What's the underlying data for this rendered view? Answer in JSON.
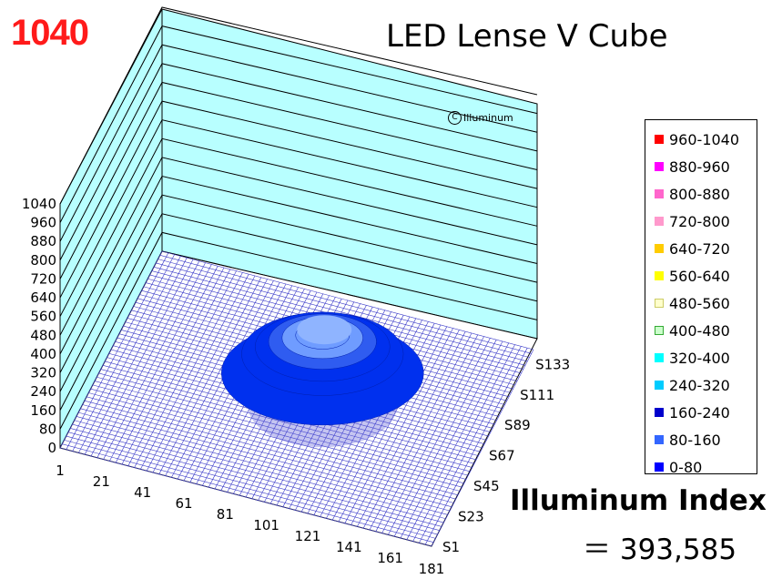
{
  "peak_label": "1040",
  "copyright": {
    "symbol": "C",
    "text": "Illuminum"
  },
  "index": {
    "label": "Illuminum Index",
    "value": "＝ 393,585"
  },
  "chart_data": {
    "type": "surface3d",
    "title": "LED Lense V Cube",
    "xlabel": "",
    "ylabel": "",
    "zlabel": "",
    "z_ticks": [
      "0",
      "80",
      "160",
      "240",
      "320",
      "400",
      "480",
      "560",
      "640",
      "720",
      "800",
      "880",
      "960",
      "1040"
    ],
    "zlim": [
      0,
      1040
    ],
    "x_ticks": [
      "1",
      "21",
      "41",
      "61",
      "81",
      "101",
      "121",
      "141",
      "161",
      "181"
    ],
    "y_ticks": [
      "S1",
      "S23",
      "S45",
      "S67",
      "S89",
      "S111",
      "S133"
    ],
    "legend": [
      {
        "label": "960-1040",
        "color": "#ff0000"
      },
      {
        "label": "880-960",
        "color": "#ff00ff"
      },
      {
        "label": "800-880",
        "color": "#ff66cc"
      },
      {
        "label": "720-800",
        "color": "#ff99cc"
      },
      {
        "label": "640-720",
        "color": "#ffcc00"
      },
      {
        "label": "560-640",
        "color": "#ffff00"
      },
      {
        "label": "480-560",
        "color": "#ffffcc"
      },
      {
        "label": "400-480",
        "color": "#ccffcc"
      },
      {
        "label": "320-400",
        "color": "#00ffff"
      },
      {
        "label": "240-320",
        "color": "#00ccff"
      },
      {
        "label": "160-240",
        "color": "#0000cc"
      },
      {
        "label": "80-160",
        "color": "#3366ff"
      },
      {
        "label": "0-80",
        "color": "#0000ff"
      }
    ],
    "surface": {
      "peak_x": 101,
      "peak_y": "S89",
      "peak_value": 260,
      "base_value": 0
    },
    "grid": true,
    "legend_position": "right"
  },
  "colors": {
    "wall": "#b3ffff",
    "floor_grid": "#3333cc",
    "surface_dark": "#0033ee",
    "surface_light": "#6699ff"
  }
}
